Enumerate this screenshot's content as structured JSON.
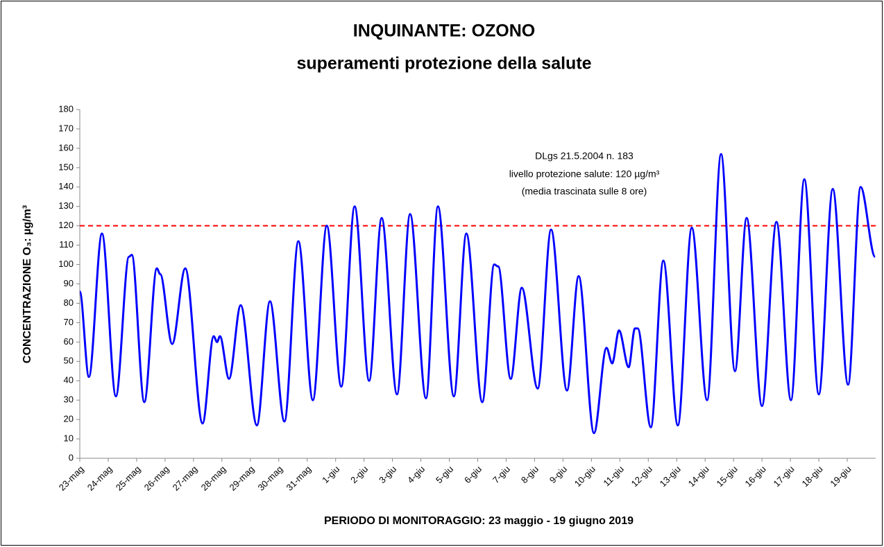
{
  "chart_data": {
    "type": "line",
    "title": [
      "INQUINANTE: OZONO",
      "superamenti protezione della salute"
    ],
    "x_label": "PERIODO DI MONITORAGGIO: 23 maggio - 19 giugno 2019",
    "y_label": "CONCENTRAZIONE O₃: µg/m³",
    "xlim": [
      0,
      28
    ],
    "xticks": [
      {
        "value": 0,
        "label": "23-mag"
      },
      {
        "value": 1,
        "label": "24-mag"
      },
      {
        "value": 2,
        "label": "25-mag"
      },
      {
        "value": 3,
        "label": "26-mag"
      },
      {
        "value": 4,
        "label": "27-mag"
      },
      {
        "value": 5,
        "label": "28-mag"
      },
      {
        "value": 6,
        "label": "29-mag"
      },
      {
        "value": 7,
        "label": "30-mag"
      },
      {
        "value": 8,
        "label": "31-mag"
      },
      {
        "value": 9,
        "label": "1-giu"
      },
      {
        "value": 10,
        "label": "2-giu"
      },
      {
        "value": 11,
        "label": "3-giu"
      },
      {
        "value": 12,
        "label": "4-giu"
      },
      {
        "value": 13,
        "label": "5-giu"
      },
      {
        "value": 14,
        "label": "6-giu"
      },
      {
        "value": 15,
        "label": "7-giu"
      },
      {
        "value": 16,
        "label": "8-giu"
      },
      {
        "value": 17,
        "label": "9-giu"
      },
      {
        "value": 18,
        "label": "10-giu"
      },
      {
        "value": 19,
        "label": "11-giu"
      },
      {
        "value": 20,
        "label": "12-giu"
      },
      {
        "value": 21,
        "label": "13-giu"
      },
      {
        "value": 22,
        "label": "14-giu"
      },
      {
        "value": 23,
        "label": "15-giu"
      },
      {
        "value": 24,
        "label": "16-giu"
      },
      {
        "value": 25,
        "label": "17-giu"
      },
      {
        "value": 26,
        "label": "18-giu"
      },
      {
        "value": 27,
        "label": "19-giu"
      }
    ],
    "ylim": [
      0,
      180
    ],
    "yticks": [
      0,
      10,
      20,
      30,
      40,
      50,
      60,
      70,
      80,
      90,
      100,
      110,
      120,
      130,
      140,
      150,
      160,
      170,
      180
    ],
    "grid": false,
    "series": [
      {
        "color": "#0000ff",
        "x": [
          0,
          0.32,
          0.78,
          1.27,
          1.73,
          1.83,
          2.27,
          2.71,
          2.83,
          3.25,
          3.71,
          4.32,
          4.71,
          4.83,
          4.93,
          5.25,
          5.66,
          6.23,
          6.69,
          7.2,
          7.69,
          8.2,
          8.69,
          9.2,
          9.67,
          10.18,
          10.62,
          11.16,
          11.62,
          12.18,
          12.6,
          13.16,
          13.6,
          14.16,
          14.58,
          14.72,
          15.16,
          15.55,
          16.11,
          16.58,
          17.14,
          17.55,
          18.09,
          18.53,
          18.73,
          18.97,
          19.31,
          19.53,
          19.63,
          20.09,
          20.53,
          21.04,
          21.53,
          22.07,
          22.56,
          23.05,
          23.46,
          24.0,
          24.51,
          25.02,
          25.49,
          26.0,
          26.49,
          27.03,
          27.47,
          27.98
        ],
        "values": [
          86,
          42,
          116,
          32,
          104,
          105,
          29,
          98,
          95,
          59,
          98,
          18,
          63,
          60,
          63,
          41,
          79,
          17,
          81,
          19,
          112,
          30,
          120,
          37,
          130,
          40,
          124,
          33,
          126,
          31,
          130,
          32,
          116,
          29,
          100,
          99,
          41,
          88,
          36,
          118,
          35,
          94,
          13,
          57,
          49,
          66,
          47,
          67,
          67,
          16,
          102,
          17,
          119,
          30,
          157,
          45,
          124,
          27,
          122,
          30,
          144,
          33,
          139,
          38,
          140,
          104
        ]
      }
    ],
    "threshold": {
      "value": 120,
      "color": "#ff0000"
    },
    "annotation": [
      "DLgs 21.5.2004 n. 183",
      "livello protezione salute: 120 µg/m³",
      "(media trascinata sulle 8 ore)"
    ]
  }
}
